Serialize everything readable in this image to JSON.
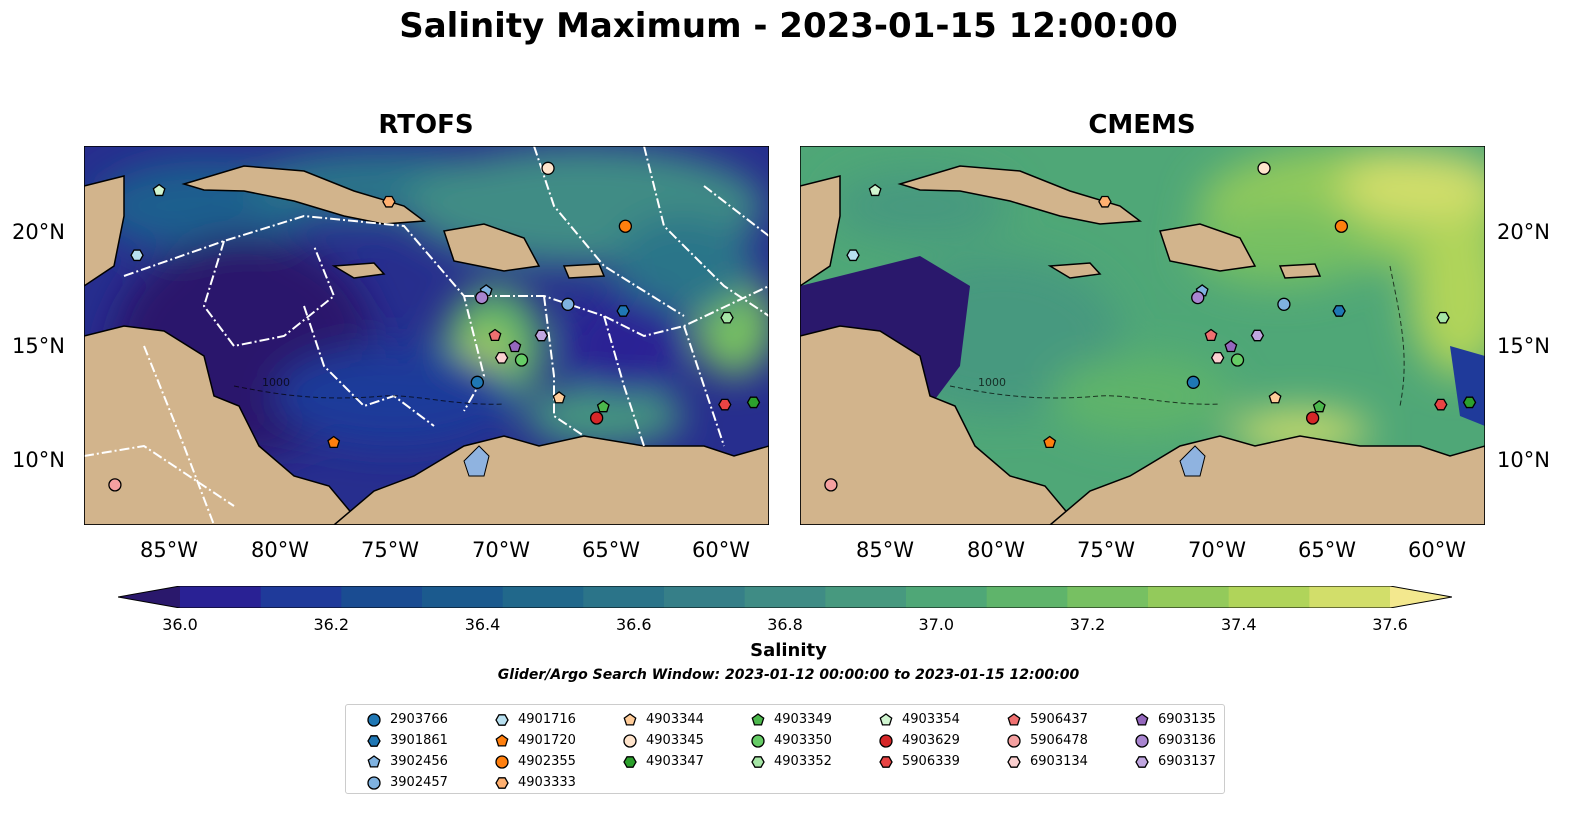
{
  "title": "Salinity Maximum - 2023-01-15 12:00:00",
  "panels": [
    {
      "title": "RTOFS"
    },
    {
      "title": "CMEMS"
    }
  ],
  "axes": {
    "lon_ticks": [
      "85°W",
      "80°W",
      "75°W",
      "70°W",
      "65°W",
      "60°W"
    ],
    "lat_ticks": [
      "20°N",
      "15°N",
      "10°N"
    ],
    "lon_range": [
      -89,
      -58
    ],
    "lat_range": [
      7,
      24
    ],
    "contour_label": "1000"
  },
  "colorbar": {
    "label": "Salinity",
    "ticks": [
      "36.0",
      "36.2",
      "36.4",
      "36.6",
      "36.8",
      "37.0",
      "37.2",
      "37.4",
      "37.6"
    ],
    "range": [
      36.0,
      37.6
    ],
    "step": 0.1,
    "extend": "both",
    "colormap": "haline",
    "colors": [
      "#2a186c",
      "#292194",
      "#1f3a9a",
      "#1a4c92",
      "#1b5a8e",
      "#21688b",
      "#2b7489",
      "#367f88",
      "#3f8c85",
      "#47997f",
      "#4fa777",
      "#5fb46b",
      "#77c062",
      "#93ca5b",
      "#b0d45a",
      "#d2de6a",
      "#f3e88e"
    ]
  },
  "search_window": "Glider/Argo Search Window: 2023-01-12 00:00:00 to 2023-01-15 12:00:00",
  "legend": [
    {
      "id": "2903766",
      "marker": "circle",
      "color": "#1f77b4"
    },
    {
      "id": "3901861",
      "marker": "hexagon",
      "color": "#1f77b4"
    },
    {
      "id": "3902456",
      "marker": "pentagon",
      "color": "#7fb2e0"
    },
    {
      "id": "3902457",
      "marker": "circle",
      "color": "#7fb2e0"
    },
    {
      "id": "4901716",
      "marker": "hexagon",
      "color": "#b8e0f0"
    },
    {
      "id": "4901720",
      "marker": "pentagon",
      "color": "#ff7f0e"
    },
    {
      "id": "4902355",
      "marker": "circle",
      "color": "#ff7f0e"
    },
    {
      "id": "4903333",
      "marker": "hexagon",
      "color": "#ffb070"
    },
    {
      "id": "4903344",
      "marker": "pentagon",
      "color": "#ffcc99"
    },
    {
      "id": "4903345",
      "marker": "circle",
      "color": "#ffe4cc"
    },
    {
      "id": "4903347",
      "marker": "hexagon",
      "color": "#2ca02c"
    },
    {
      "id": "4903349",
      "marker": "pentagon",
      "color": "#4cb84c"
    },
    {
      "id": "4903350",
      "marker": "circle",
      "color": "#66cc66"
    },
    {
      "id": "4903352",
      "marker": "hexagon",
      "color": "#a6e6a6"
    },
    {
      "id": "4903354",
      "marker": "pentagon",
      "color": "#d0f5d0"
    },
    {
      "id": "4903629",
      "marker": "circle",
      "color": "#d62728"
    },
    {
      "id": "5906339",
      "marker": "hexagon",
      "color": "#e84444"
    },
    {
      "id": "5906437",
      "marker": "pentagon",
      "color": "#f07070"
    },
    {
      "id": "5906478",
      "marker": "circle",
      "color": "#f5a0a0"
    },
    {
      "id": "6903134",
      "marker": "hexagon",
      "color": "#fbd0d0"
    },
    {
      "id": "6903135",
      "marker": "pentagon",
      "color": "#9467bd"
    },
    {
      "id": "6903136",
      "marker": "circle",
      "color": "#a985d0"
    },
    {
      "id": "6903137",
      "marker": "hexagon",
      "color": "#c0a6e0"
    }
  ],
  "floats": [
    {
      "id": "2903766",
      "lon": -71.2,
      "lat": 13.4
    },
    {
      "id": "3901861",
      "lon": -64.6,
      "lat": 16.6
    },
    {
      "id": "3902456",
      "lon": -70.8,
      "lat": 17.5
    },
    {
      "id": "3902457",
      "lon": -67.1,
      "lat": 16.9
    },
    {
      "id": "4901716",
      "lon": -86.6,
      "lat": 19.1
    },
    {
      "id": "4901720",
      "lon": -77.7,
      "lat": 10.7
    },
    {
      "id": "4902355",
      "lon": -64.5,
      "lat": 20.4
    },
    {
      "id": "4903333",
      "lon": -75.2,
      "lat": 21.5
    },
    {
      "id": "4903344",
      "lon": -67.5,
      "lat": 12.7
    },
    {
      "id": "4903345",
      "lon": -68.0,
      "lat": 23.0
    },
    {
      "id": "4903347",
      "lon": -58.7,
      "lat": 12.5
    },
    {
      "id": "4903349",
      "lon": -65.5,
      "lat": 12.3
    },
    {
      "id": "4903350",
      "lon": -69.2,
      "lat": 14.4
    },
    {
      "id": "4903352",
      "lon": -59.9,
      "lat": 16.3
    },
    {
      "id": "4903354",
      "lon": -85.6,
      "lat": 22.0
    },
    {
      "id": "4903629",
      "lon": -65.8,
      "lat": 11.8
    },
    {
      "id": "5906339",
      "lon": -60.0,
      "lat": 12.4
    },
    {
      "id": "5906437",
      "lon": -70.4,
      "lat": 15.5
    },
    {
      "id": "5906478",
      "lon": -87.6,
      "lat": 8.8
    },
    {
      "id": "6903134",
      "lon": -70.1,
      "lat": 14.5
    },
    {
      "id": "6903135",
      "lon": -69.5,
      "lat": 15.0
    },
    {
      "id": "6903136",
      "lon": -71.0,
      "lat": 17.2
    },
    {
      "id": "6903137",
      "lon": -68.3,
      "lat": 15.5
    }
  ]
}
